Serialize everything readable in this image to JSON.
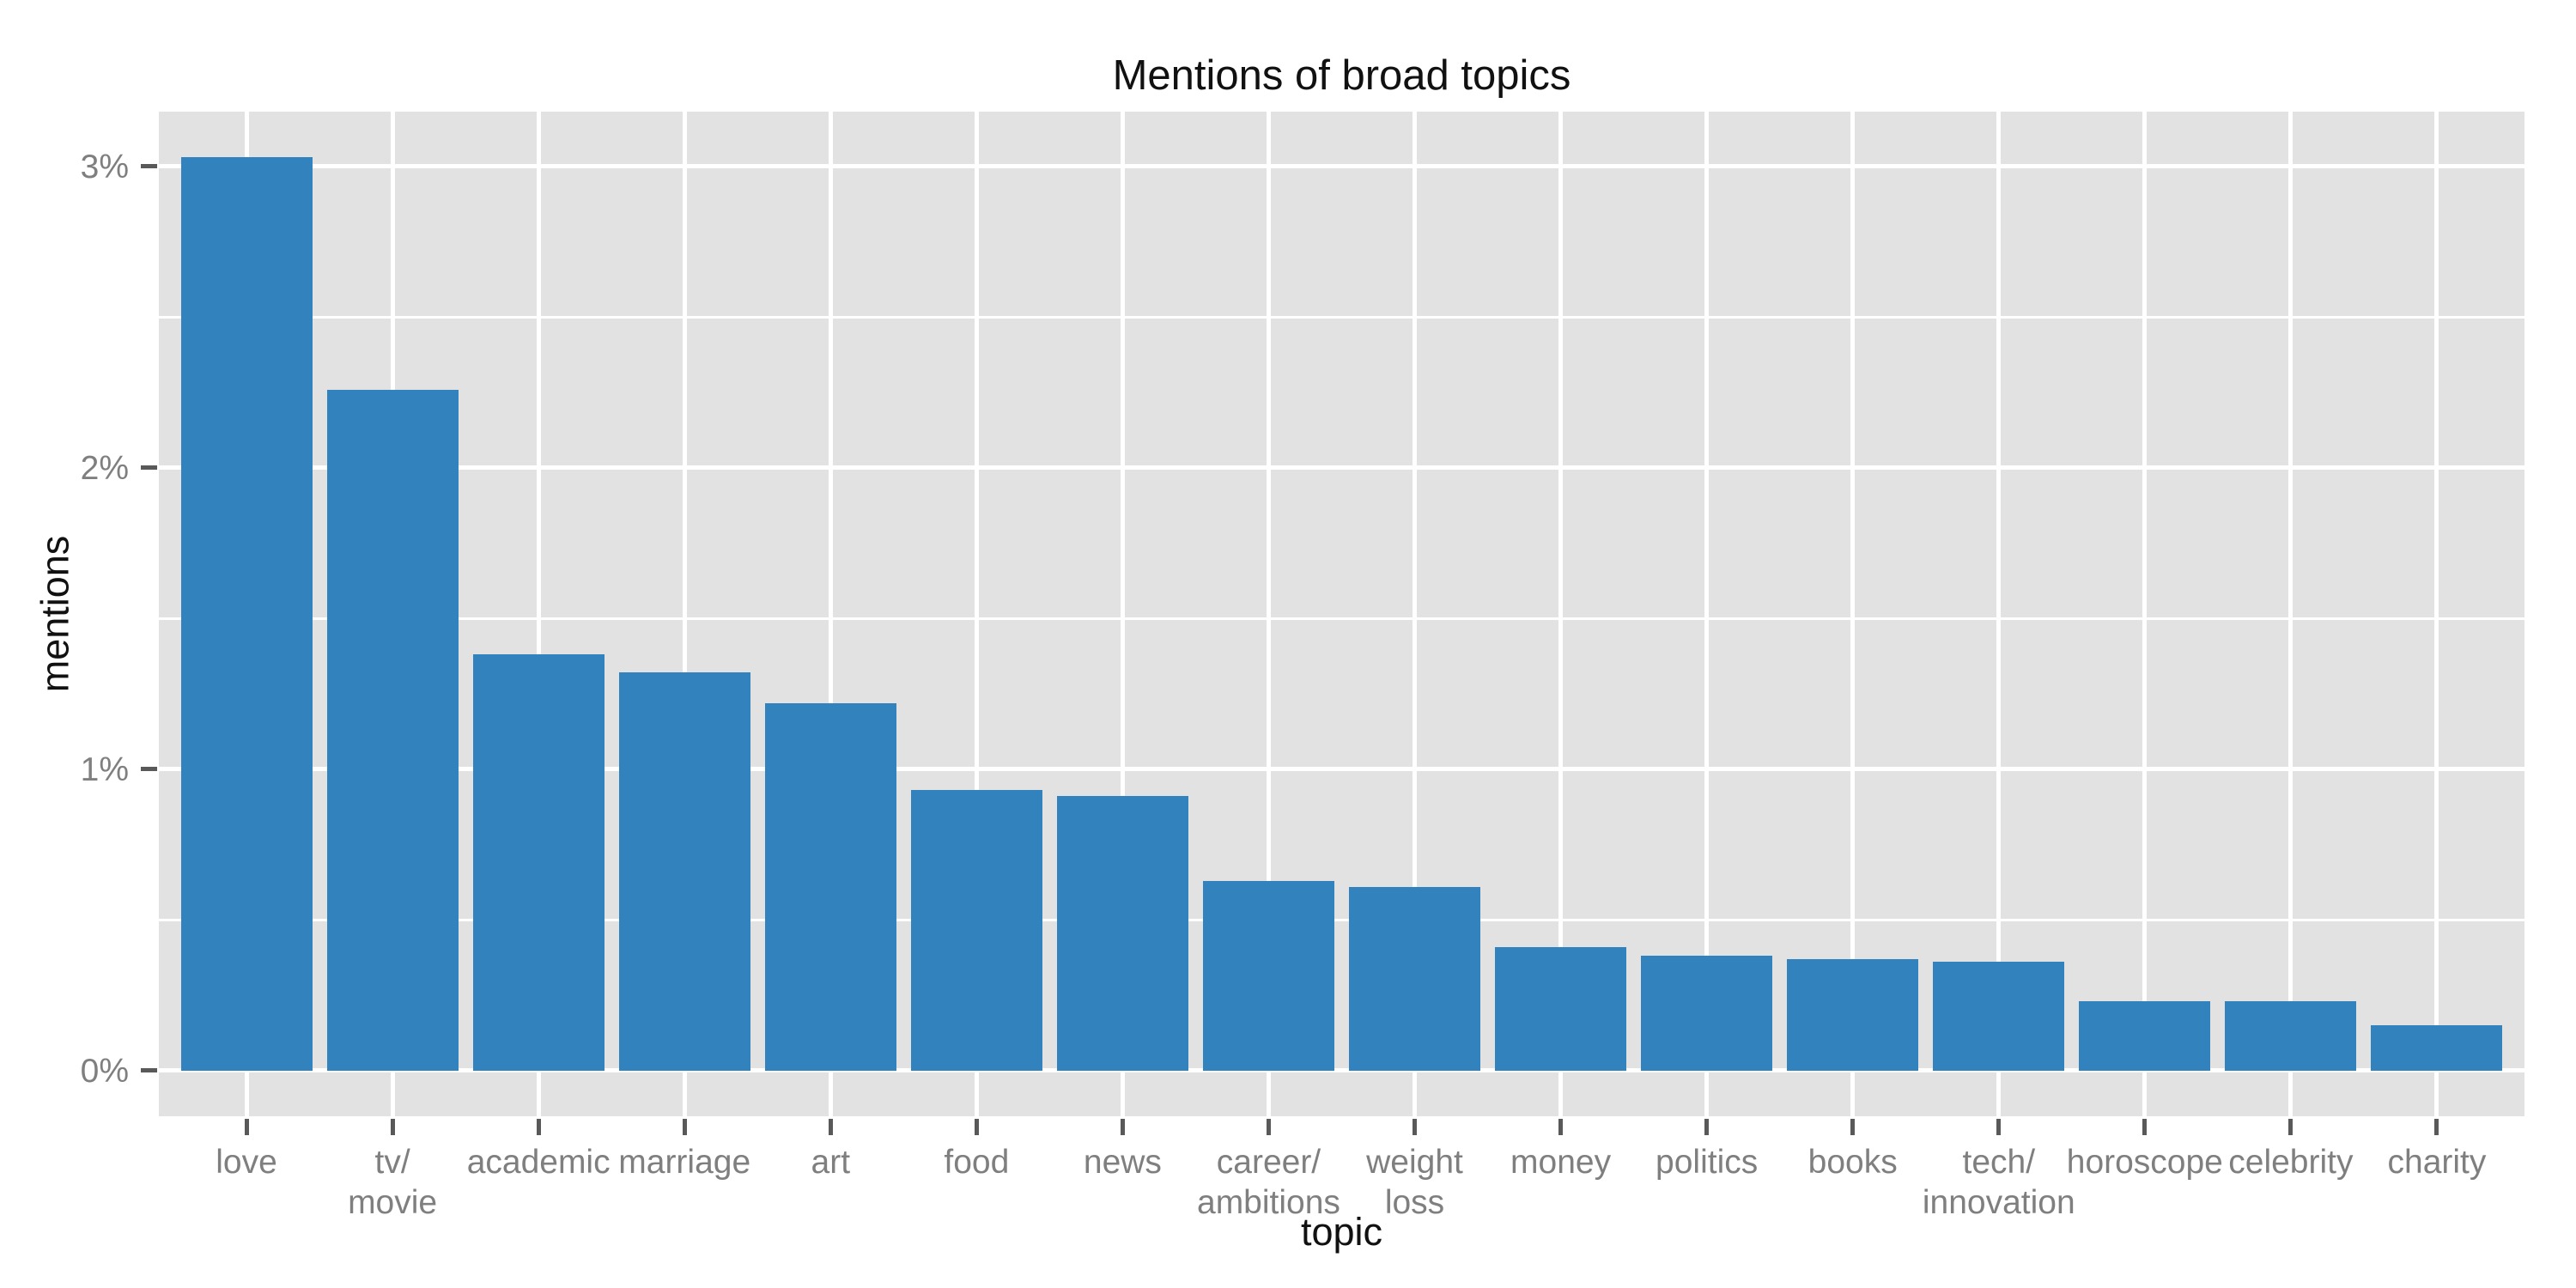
{
  "chart_data": {
    "type": "bar",
    "title": "Mentions of broad topics",
    "xlabel": "topic",
    "ylabel": "mentions",
    "categories": [
      "love",
      "tv/movie",
      "academic",
      "marriage",
      "art",
      "food",
      "news",
      "career/ambitions",
      "weight loss",
      "money",
      "politics",
      "books",
      "tech/innovation",
      "horoscope",
      "celebrity",
      "charity"
    ],
    "category_label_lines": [
      [
        "love"
      ],
      [
        "tv/",
        "movie"
      ],
      [
        "academic"
      ],
      [
        "marriage"
      ],
      [
        "art"
      ],
      [
        "food"
      ],
      [
        "news"
      ],
      [
        "career/",
        "ambitions"
      ],
      [
        "weight",
        "loss"
      ],
      [
        "money"
      ],
      [
        "politics"
      ],
      [
        "books"
      ],
      [
        "tech/",
        "innovation"
      ],
      [
        "horoscope"
      ],
      [
        "celebrity"
      ],
      [
        "charity"
      ]
    ],
    "values": [
      3.03,
      2.26,
      1.38,
      1.32,
      1.22,
      0.93,
      0.91,
      0.63,
      0.61,
      0.41,
      0.38,
      0.37,
      0.36,
      0.23,
      0.23,
      0.15
    ],
    "unit": "%",
    "y_major_ticks": [
      {
        "value": 0,
        "label": "0%"
      },
      {
        "value": 1,
        "label": "1%"
      },
      {
        "value": 2,
        "label": "2%"
      },
      {
        "value": 3,
        "label": "3%"
      }
    ],
    "y_minor_ticks": [
      0.5,
      1.5,
      2.5
    ],
    "ylim": [
      -0.152,
      3.182
    ],
    "bar_width_fraction": 0.9,
    "category_edge_expansion": 0.6,
    "grid": "on",
    "legend": "none",
    "colors": {
      "bar": "#3182bd",
      "panel_background": "#e2e2e2",
      "gridline": "#ffffff",
      "tick_label": "#7f7f7f",
      "tick_mark": "#595959",
      "text": "#111111",
      "figure_background": "#ffffff"
    }
  }
}
